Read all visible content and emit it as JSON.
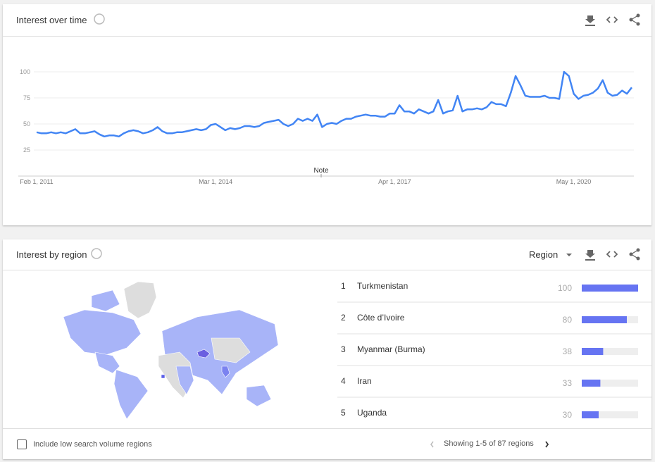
{
  "chart_data": {
    "type": "line",
    "title": "Interest over time",
    "note": "Note",
    "color": "#4285f4",
    "categories": [
      "Feb 1, 2011",
      null,
      null,
      null,
      null,
      null,
      null,
      null,
      null,
      null,
      null,
      null,
      null,
      null,
      null,
      null,
      null,
      null,
      null,
      null,
      null,
      null,
      null,
      null,
      null,
      null,
      null,
      null,
      null,
      null,
      null,
      null,
      null,
      null,
      null,
      null,
      null,
      "Mar 1, 2014",
      null,
      null,
      null,
      null,
      null,
      null,
      null,
      null,
      null,
      null,
      null,
      null,
      null,
      null,
      null,
      null,
      null,
      null,
      null,
      null,
      null,
      null,
      null,
      null,
      null,
      null,
      null,
      null,
      null,
      null,
      null,
      null,
      null,
      null,
      null,
      null,
      "Apr 1, 2017",
      null,
      null,
      null,
      null,
      null,
      null,
      null,
      null,
      null,
      null,
      null,
      null,
      null,
      null,
      null,
      null,
      null,
      null,
      null,
      null,
      null,
      null,
      null,
      null,
      null,
      null,
      null,
      null,
      null,
      null,
      null,
      null,
      null,
      null,
      null,
      null,
      "May 1, 2020",
      null,
      null,
      null,
      null,
      null,
      null,
      null,
      null,
      null,
      null,
      null,
      null
    ],
    "values": [
      42,
      41,
      41,
      42,
      41,
      42,
      41,
      43,
      45,
      41,
      41,
      42,
      43,
      40,
      38,
      39,
      39,
      38,
      41,
      43,
      44,
      43,
      41,
      42,
      44,
      47,
      43,
      41,
      41,
      42,
      42,
      43,
      44,
      45,
      44,
      45,
      49,
      50,
      47,
      44,
      46,
      45,
      46,
      48,
      48,
      47,
      48,
      51,
      52,
      53,
      54,
      50,
      48,
      50,
      55,
      53,
      55,
      53,
      59,
      47,
      50,
      51,
      50,
      53,
      55,
      55,
      57,
      58,
      59,
      58,
      58,
      57,
      57,
      60,
      60,
      68,
      62,
      62,
      60,
      64,
      62,
      60,
      62,
      73,
      60,
      62,
      63,
      77,
      62,
      64,
      64,
      65,
      64,
      66,
      71,
      69,
      69,
      67,
      80,
      96,
      87,
      77,
      76,
      76,
      76,
      77,
      75,
      75,
      74,
      100,
      96,
      79,
      74,
      77,
      78,
      80,
      84,
      92,
      80,
      77,
      78,
      82,
      79,
      85
    ],
    "ylim": [
      0,
      100
    ],
    "yticks": [
      25,
      50,
      75,
      100
    ],
    "grid": true
  },
  "regions": {
    "title": "Interest by region",
    "selector": "Region",
    "color": "#6674f2",
    "rows": [
      {
        "rank": 1,
        "name": "Turkmenistan",
        "value": 100
      },
      {
        "rank": 2,
        "name": "Côte d’Ivoire",
        "value": 80
      },
      {
        "rank": 3,
        "name": "Myanmar (Burma)",
        "value": 38
      },
      {
        "rank": 4,
        "name": "Iran",
        "value": 33
      },
      {
        "rank": 5,
        "name": "Uganda",
        "value": 30
      }
    ],
    "checkbox_label": "Include low search volume regions",
    "pagination": "Showing 1-5 of 87 regions"
  }
}
